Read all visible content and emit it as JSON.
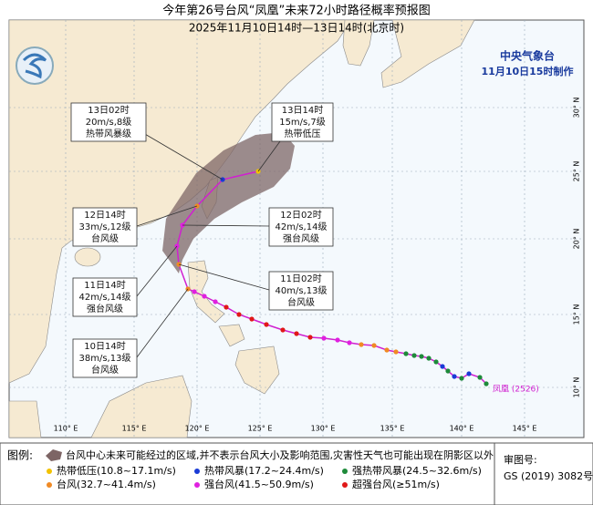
{
  "title": "今年第26号台风“凤凰”未来72小时路径概率预报图",
  "subtitle": "2025年11月10日14时—13日14时(北京时)",
  "agency": "中央气象台",
  "issued": "11月10日15时制作",
  "storm_label": "凤凰 (2526)",
  "lon_labels": [
    "110° E",
    "115° E",
    "120° E",
    "125° E",
    "130° E",
    "135° E",
    "140° E",
    "145° E"
  ],
  "lat_labels": [
    "30° N",
    "25° N",
    "20° N",
    "15° N",
    "10° N"
  ],
  "annotations": [
    {
      "time": "13日02时",
      "wind": "20m/s,8级",
      "level": "热带风暴级"
    },
    {
      "time": "13日14时",
      "wind": "15m/s,7级",
      "level": "热带低压"
    },
    {
      "time": "12日14时",
      "wind": "33m/s,12级",
      "level": "台风级"
    },
    {
      "time": "12日02时",
      "wind": "42m/s,14级",
      "level": "强台风级"
    },
    {
      "time": "11日14时",
      "wind": "42m/s,14级",
      "level": "强台风级"
    },
    {
      "time": "11日02时",
      "wind": "40m/s,13级",
      "level": "台风级"
    },
    {
      "time": "10日14时",
      "wind": "38m/s,13级",
      "level": "台风级"
    }
  ],
  "legend": {
    "title": "图例:",
    "cone": "台风中心未来可能经过的区域,并不表示台风大小及影响范围,灾害性天气也可能出现在阴影区以外",
    "items": [
      {
        "label": "热带低压(10.8~17.1m/s)",
        "color": "#f2c200"
      },
      {
        "label": "热带风暴(17.2~24.4m/s)",
        "color": "#1a3bd6"
      },
      {
        "label": "强热带风暴(24.5~32.6m/s)",
        "color": "#1e8a3a"
      },
      {
        "label": "台风(32.7~41.4m/s)",
        "color": "#f08a24"
      },
      {
        "label": "强台风(41.5~50.9m/s)",
        "color": "#e020e0"
      },
      {
        "label": "超强台风(≥51m/s)",
        "color": "#e01818"
      }
    ]
  },
  "approval": {
    "label": "审图号:",
    "number": "GS (2019) 3082号"
  }
}
